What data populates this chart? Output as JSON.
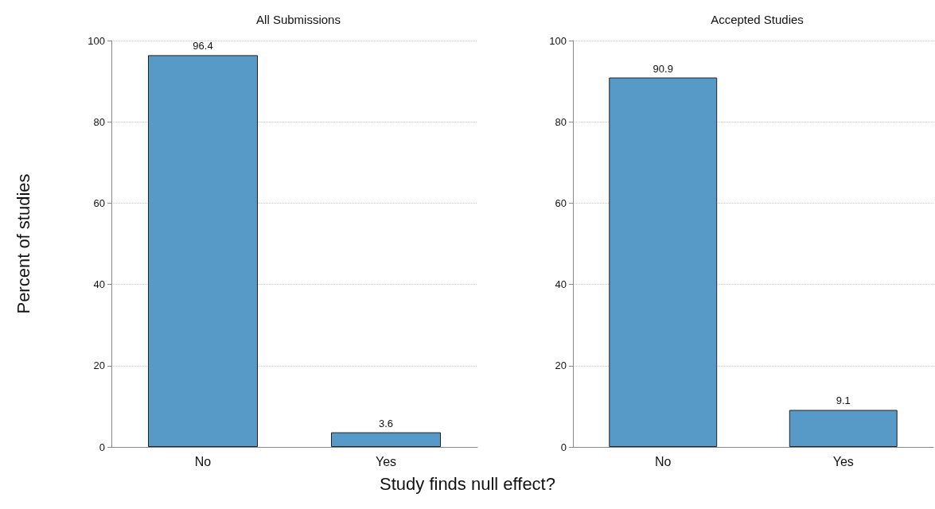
{
  "chart_data": [
    {
      "type": "bar",
      "title": "All Submissions",
      "ylabel": "Percent of studies",
      "xlabel": "Study finds null effect?",
      "categories": [
        "No",
        "Yes"
      ],
      "values": [
        96.4,
        3.6
      ],
      "color": "#5799c7",
      "ylim": [
        0,
        100
      ],
      "yticks": [
        0,
        20,
        40,
        60,
        80,
        100
      ],
      "grid": "y",
      "data_labels": true
    },
    {
      "type": "bar",
      "title": "Accepted Studies",
      "categories": [
        "No",
        "Yes"
      ],
      "values": [
        90.9,
        9.1
      ],
      "color": "#5799c7",
      "ylim": [
        0,
        100
      ],
      "yticks": [
        0,
        20,
        40,
        60,
        80,
        100
      ],
      "grid": "y",
      "data_labels": true
    }
  ]
}
